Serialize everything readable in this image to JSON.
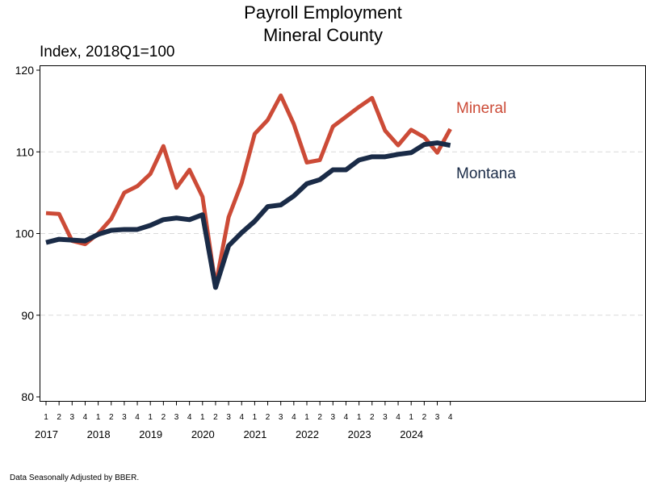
{
  "chart_data": {
    "type": "line",
    "title": [
      "Payroll Employment",
      "Mineral County"
    ],
    "ylabel": "Index, 2018Q1=100",
    "ylim": [
      80,
      120
    ],
    "yticks": [
      80,
      90,
      100,
      110,
      120
    ],
    "grid": "y-dashed",
    "quarter_labels": [
      "1",
      "2",
      "3",
      "4",
      "1",
      "2",
      "3",
      "4",
      "1",
      "2",
      "3",
      "4",
      "1",
      "2",
      "3",
      "4",
      "1",
      "2",
      "3",
      "4",
      "1",
      "2",
      "3",
      "4",
      "1",
      "2",
      "3",
      "4",
      "1",
      "2",
      "3",
      "4"
    ],
    "year_labels": [
      "2017",
      "2018",
      "2019",
      "2020",
      "2021",
      "2022",
      "2023",
      "2024"
    ],
    "series": [
      {
        "name": "Mineral",
        "color": "#cc4b37",
        "values": [
          102.5,
          102.4,
          99.1,
          98.7,
          100.0,
          101.8,
          105.0,
          105.8,
          107.3,
          110.7,
          105.6,
          107.8,
          104.5,
          93.6,
          102.0,
          106.2,
          112.2,
          113.9,
          116.9,
          113.4,
          108.7,
          109.0,
          113.1,
          114.3,
          115.5,
          116.6,
          112.6,
          110.8,
          112.7,
          111.8,
          109.9,
          112.8
        ]
      },
      {
        "name": "Montana",
        "color": "#1a2b47",
        "values": [
          98.9,
          99.3,
          99.2,
          99.1,
          99.9,
          100.4,
          100.5,
          100.5,
          101.0,
          101.7,
          101.9,
          101.7,
          102.3,
          93.4,
          98.5,
          100.1,
          101.5,
          103.3,
          103.5,
          104.6,
          106.1,
          106.6,
          107.8,
          107.8,
          109.0,
          109.4,
          109.4,
          109.7,
          109.9,
          110.9,
          111.1,
          110.8
        ]
      }
    ]
  },
  "footer": "Data Seasonally Adjusted by BBER."
}
